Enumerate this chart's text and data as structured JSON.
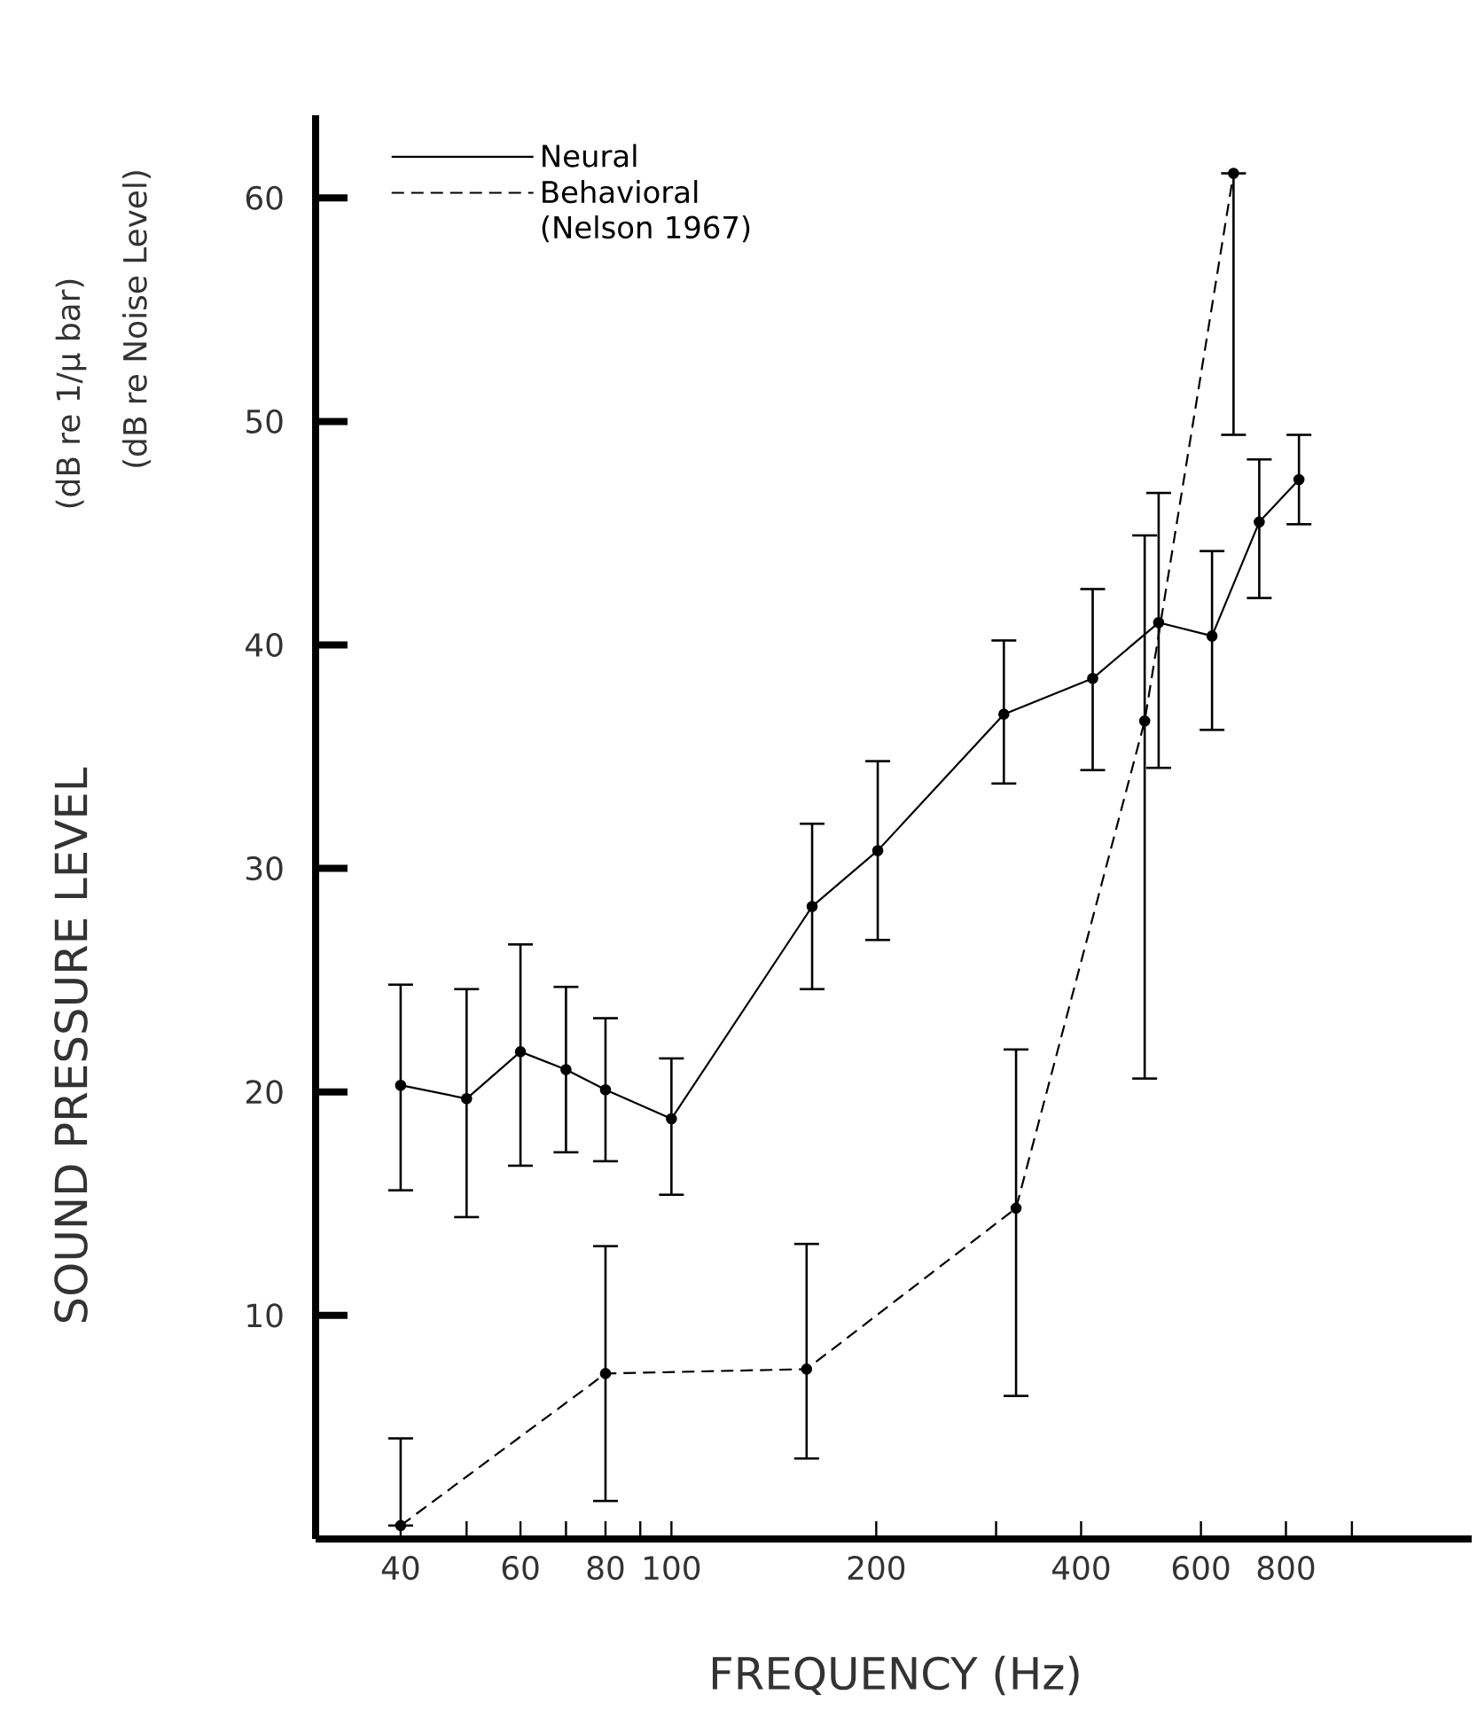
{
  "chart_data": {
    "type": "line",
    "xlabel": "FREQUENCY (Hz)",
    "ylabel": "SOUND PRESSURE LEVEL",
    "annotations": [
      "(dB re 1/μ bar)",
      "(dB re Noise Level)"
    ],
    "log": "x",
    "xlim": [
      30,
      1500
    ],
    "ylim": [
      0,
      63.7
    ],
    "xticks": [
      40,
      {
        "value": 50,
        "label": null
      },
      60,
      {
        "value": 70,
        "label": null
      },
      80,
      {
        "value": 90,
        "label": null
      },
      100,
      200,
      {
        "value": 300,
        "label": null
      },
      400,
      600,
      800,
      {
        "value": 1000,
        "label": null
      }
    ],
    "yticks": [
      10,
      20,
      30,
      40,
      50,
      60
    ],
    "legend": "top left",
    "marker": "circle",
    "series": [
      {
        "name": "Neural",
        "color": "#000000",
        "line_style": "solid",
        "x": [
          40,
          50,
          60,
          70,
          80,
          100,
          161,
          201,
          308,
          416,
          520,
          623,
          731,
          836
        ],
        "values": [
          20.3,
          19.7,
          21.8,
          21.0,
          20.1,
          18.8,
          28.3,
          30.8,
          36.9,
          38.5,
          41.0,
          40.4,
          45.5,
          47.4
        ],
        "errors": [
          [
            15.6,
            24.8
          ],
          [
            14.4,
            24.6
          ],
          [
            16.7,
            26.6
          ],
          [
            17.3,
            24.7
          ],
          [
            16.9,
            23.3
          ],
          [
            15.4,
            21.5
          ],
          [
            24.6,
            32.0
          ],
          [
            26.8,
            34.8
          ],
          [
            33.8,
            40.2
          ],
          [
            34.4,
            42.5
          ],
          [
            34.5,
            46.8
          ],
          [
            36.2,
            44.2
          ],
          [
            42.1,
            48.3
          ],
          [
            45.4,
            49.4
          ]
        ]
      },
      {
        "name": "Behavioral (Nelson 1967)",
        "color": "#000000",
        "line_style": "dashed",
        "x": [
          40,
          80,
          158,
          321,
          496,
          670
        ],
        "values": [
          0.6,
          7.4,
          7.6,
          14.8,
          36.6,
          61.1
        ],
        "errors": [
          [
            0.6,
            4.5
          ],
          [
            1.7,
            13.1
          ],
          [
            3.6,
            13.2
          ],
          [
            6.4,
            21.9
          ],
          [
            20.6,
            44.9
          ],
          [
            49.4,
            61.1
          ]
        ]
      }
    ]
  }
}
